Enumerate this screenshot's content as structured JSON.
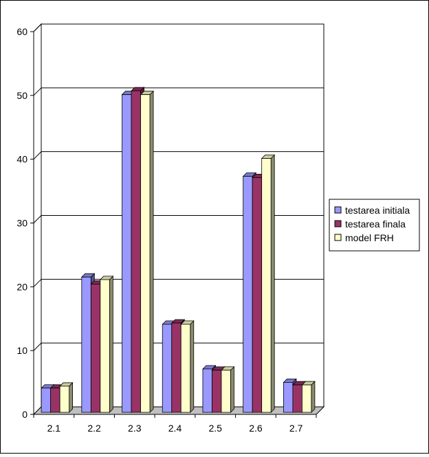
{
  "chart_data": {
    "type": "bar",
    "categories": [
      "2.1",
      "2.2",
      "2.3",
      "2.4",
      "2.5",
      "2.6",
      "2.7"
    ],
    "series": [
      {
        "name": "testarea initiala",
        "values": [
          3.8,
          21.2,
          49.8,
          13.8,
          6.8,
          37.0,
          4.7
        ],
        "color": "#9999FF"
      },
      {
        "name": "testarea finala",
        "values": [
          3.8,
          20.1,
          50.4,
          14.0,
          6.6,
          36.8,
          4.3
        ],
        "color": "#993366"
      },
      {
        "name": "model FRH",
        "values": [
          4.1,
          20.8,
          49.8,
          13.8,
          6.6,
          39.8,
          4.3
        ],
        "color": "#FFFFCC"
      }
    ],
    "yticks": [
      "0",
      "10",
      "20",
      "30",
      "40",
      "50",
      "60"
    ],
    "ylim": [
      0,
      60
    ],
    "grid": true,
    "legend_position": "right",
    "wall_color": "#FFFFFF",
    "floor_color": "#C0C0C0"
  }
}
